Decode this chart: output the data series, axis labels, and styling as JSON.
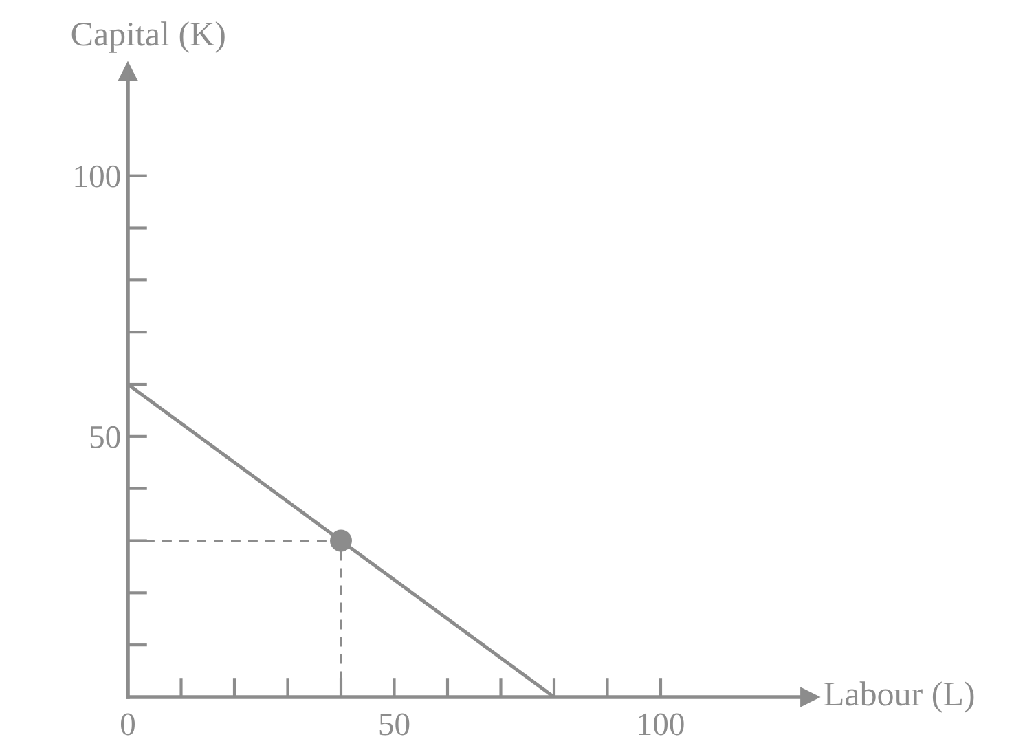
{
  "chart_data": {
    "type": "line",
    "xlabel": "Labour (L)",
    "ylabel": "Capital (K)",
    "xlim": [
      0,
      128
    ],
    "ylim": [
      0,
      120
    ],
    "xticks": [
      0,
      {
        "value": 10,
        "label": null
      },
      {
        "value": 20,
        "label": null
      },
      {
        "value": 30,
        "label": null
      },
      {
        "value": 40,
        "label": null
      },
      50,
      {
        "value": 60,
        "label": null
      },
      {
        "value": 70,
        "label": null
      },
      {
        "value": 80,
        "label": null
      },
      {
        "value": 90,
        "label": null
      },
      100
    ],
    "yticks": [
      {
        "value": 10,
        "label": null
      },
      {
        "value": 20,
        "label": null
      },
      {
        "value": 30,
        "label": null
      },
      {
        "value": 40,
        "label": null
      },
      50,
      {
        "value": 60,
        "label": null
      },
      {
        "value": 70,
        "label": null
      },
      {
        "value": 80,
        "label": null
      },
      {
        "value": 90,
        "label": null
      },
      100
    ],
    "grid": false,
    "legend": false,
    "series": [
      {
        "color": "#8c8c8c",
        "x": [
          0,
          80
        ],
        "values": [
          60,
          0
        ],
        "line_style": "solid"
      },
      {
        "type": "line",
        "color": "#8c8c8c",
        "x": [
          0,
          40,
          40
        ],
        "values": [
          30,
          30,
          0
        ],
        "line_style": "dashed"
      },
      {
        "type": "scatter",
        "color": "#8c8c8c",
        "x": [
          40
        ],
        "values": [
          30
        ],
        "marker": "circle"
      }
    ]
  }
}
